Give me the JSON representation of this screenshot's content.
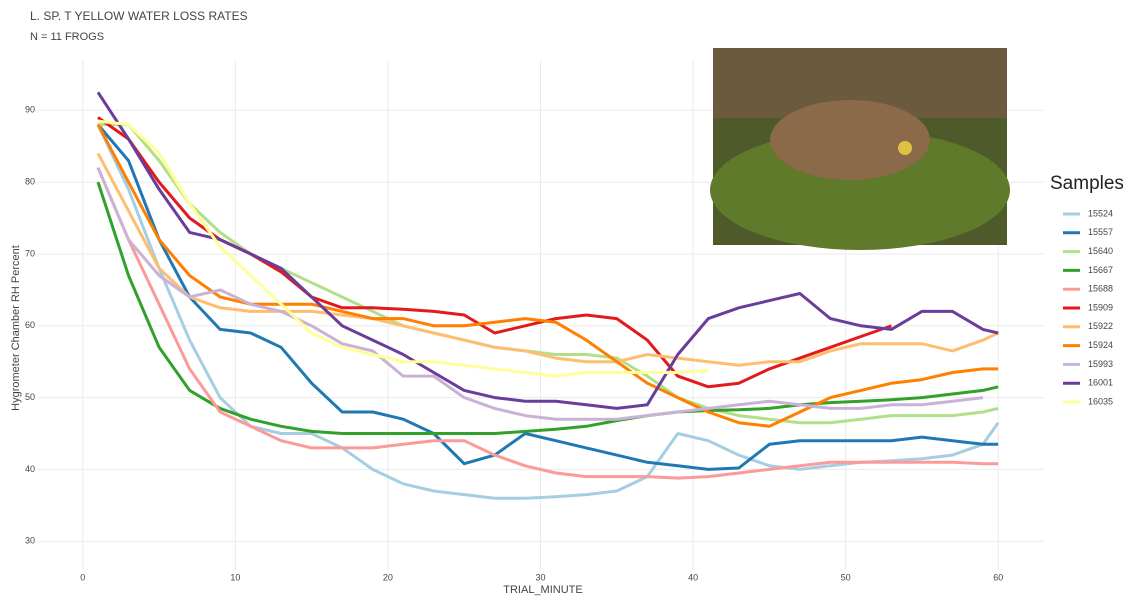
{
  "chart_data": {
    "type": "line",
    "title": "L. SP. T YELLOW WATER LOSS RATES",
    "subtitle": "N = 11 FROGS",
    "x_label": "TRIAL_MINUTE",
    "y_label": "Hygrometer Chamber RH Percent",
    "legend_title": "Samples",
    "grid": true,
    "xlim": [
      -3,
      63
    ],
    "ylim": [
      26,
      97
    ],
    "xticks": [
      0,
      10,
      20,
      30,
      40,
      50,
      60
    ],
    "yticks": [
      30,
      40,
      50,
      60,
      70,
      80,
      90
    ],
    "x": [
      1,
      3,
      5,
      7,
      9,
      11,
      13,
      15,
      17,
      19,
      21,
      23,
      25,
      27,
      29,
      31,
      33,
      35,
      37,
      39,
      41,
      43,
      45,
      47,
      49,
      51,
      53,
      55,
      57,
      59,
      60
    ],
    "series": [
      {
        "name": "15524",
        "color": "#a6cee3",
        "values": [
          88,
          79,
          68,
          58,
          50,
          46,
          45,
          45,
          43,
          40,
          38,
          37,
          36.5,
          36,
          36,
          36.2,
          36.5,
          37,
          39,
          45,
          44,
          42,
          40.5,
          40,
          40.5,
          41,
          41.2,
          41.5,
          42,
          43.5,
          46.5
        ]
      },
      {
        "name": "15557",
        "color": "#1f78b4",
        "values": [
          88,
          83,
          72,
          64,
          59.5,
          59,
          57,
          52,
          48,
          48,
          47,
          45,
          40.8,
          42,
          45,
          44,
          43,
          42,
          41,
          40.5,
          40,
          40.2,
          43.5,
          44,
          44,
          44,
          44,
          44.5,
          44,
          43.5,
          43.5
        ]
      },
      {
        "name": "15640",
        "color": "#b2df8a",
        "values": [
          88,
          88,
          83,
          77,
          73,
          70,
          68,
          66,
          64,
          62,
          60,
          59,
          58,
          57,
          56.5,
          56,
          56,
          55.5,
          53,
          50,
          48.5,
          47.5,
          47,
          46.5,
          46.5,
          47,
          47.5,
          47.5,
          47.5,
          48,
          48.5
        ]
      },
      {
        "name": "15667",
        "color": "#33a02c",
        "values": [
          80,
          67,
          57,
          51,
          48.5,
          47,
          46,
          45.3,
          45,
          45,
          45,
          45,
          45,
          45,
          45.3,
          45.6,
          46,
          46.8,
          47.5,
          48,
          48.2,
          48.3,
          48.5,
          49,
          49.3,
          49.5,
          49.7,
          50,
          50.5,
          51,
          51.5
        ]
      },
      {
        "name": "15688",
        "color": "#fb9a99",
        "values": [
          82,
          72,
          63,
          54,
          48,
          46,
          44,
          43,
          43,
          43,
          43.5,
          44,
          44,
          42,
          40.5,
          39.5,
          39,
          39,
          39,
          38.8,
          39,
          39.5,
          40,
          40.5,
          41,
          41,
          41,
          41,
          41,
          40.8,
          40.8
        ]
      },
      {
        "name": "15909",
        "color": "#e31a1c",
        "values": [
          89,
          86,
          80,
          75,
          72,
          70,
          67.5,
          64,
          62.5,
          62.5,
          62.3,
          62,
          61.5,
          59,
          60,
          61,
          61.5,
          61,
          58,
          53,
          51.5,
          52,
          54,
          55.5,
          57,
          58.5,
          60,
          null,
          null,
          null,
          null
        ]
      },
      {
        "name": "15922",
        "color": "#fdbf6f",
        "values": [
          84,
          76,
          68,
          64,
          62.5,
          62,
          62,
          62,
          61.5,
          61,
          60,
          59,
          58,
          57,
          56.5,
          55.5,
          55,
          55,
          56,
          55.5,
          55,
          54.5,
          55,
          55,
          56.5,
          57.5,
          57.5,
          57.5,
          56.5,
          58,
          59
        ]
      },
      {
        "name": "15924",
        "color": "#ff7f00",
        "values": [
          88,
          80,
          72,
          67,
          64,
          63,
          63,
          63,
          62,
          61,
          61,
          60,
          60,
          60.5,
          61,
          60.5,
          58,
          55,
          52,
          50,
          48,
          46.5,
          46,
          48,
          50,
          51,
          52,
          52.5,
          53.5,
          54,
          54
        ]
      },
      {
        "name": "15993",
        "color": "#cab2d6",
        "values": [
          82,
          72,
          67,
          64,
          65,
          63,
          62,
          60,
          57.5,
          56.5,
          53,
          53,
          50,
          48.5,
          47.5,
          47,
          47,
          47,
          47.5,
          48,
          48.5,
          49,
          49.5,
          49,
          48.5,
          48.5,
          49,
          49,
          49.5,
          50,
          null
        ]
      },
      {
        "name": "16001",
        "color": "#6a3d9a",
        "values": [
          92.5,
          86,
          79,
          73,
          72,
          70,
          68,
          64,
          60,
          58,
          56,
          53.5,
          51,
          50,
          49.5,
          49.5,
          49,
          48.5,
          49,
          56,
          61,
          62.5,
          63.5,
          64.5,
          61,
          60,
          59.5,
          62,
          62,
          59.5,
          59
        ]
      },
      {
        "name": "16035",
        "color": "#ffff99",
        "values": [
          88.5,
          88,
          84,
          77,
          71,
          67,
          63,
          59,
          57,
          56,
          55,
          55,
          54.5,
          54,
          53.5,
          53,
          53.5,
          53.5,
          53.5,
          53.5,
          53.8,
          null,
          null,
          null,
          null,
          null,
          null,
          null,
          null,
          null,
          null
        ]
      }
    ]
  }
}
